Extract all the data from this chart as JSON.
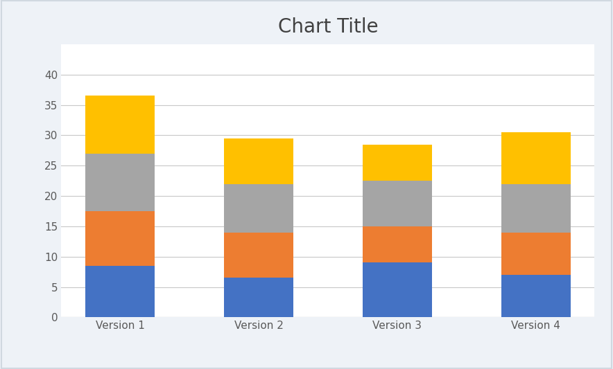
{
  "categories": [
    "Version 1",
    "Version 2",
    "Version 3",
    "Version 4"
  ],
  "series": {
    "Consumer rating": [
      8.5,
      6.5,
      9.0,
      7.0
    ],
    "Expert rating": [
      9.0,
      7.5,
      6.0,
      7.0
    ],
    "Predicted rating": [
      9.5,
      8.0,
      7.5,
      8.0
    ],
    "Desired rating": [
      9.5,
      7.5,
      6.0,
      8.5
    ]
  },
  "colors": {
    "Consumer rating": "#4472C4",
    "Expert rating": "#ED7D31",
    "Predicted rating": "#A5A5A5",
    "Desired rating": "#FFC000"
  },
  "title": "Chart Title",
  "title_fontsize": 20,
  "title_color": "#404040",
  "ylim": [
    0,
    45
  ],
  "yticks": [
    0,
    5,
    10,
    15,
    20,
    25,
    30,
    35,
    40
  ],
  "bar_width": 0.5,
  "legend_fontsize": 10,
  "background_color": "#FFFFFF",
  "plot_bg_color": "#FFFFFF",
  "grid_color": "#C8C8C8",
  "tick_label_color": "#595959",
  "tick_label_fontsize": 11,
  "border_color": "#D0D8E0",
  "outer_bg_color": "#EEF2F7"
}
